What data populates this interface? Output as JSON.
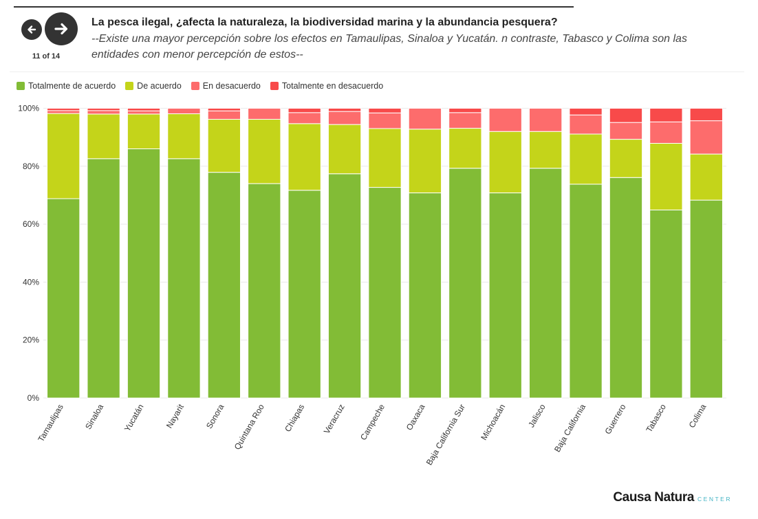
{
  "header": {
    "title": "La pesca ilegal, ¿afecta la naturaleza, la biodiversidad marina y la abundancia pesquera?",
    "subtitle": "--Existe una mayor percepción sobre los efectos en Tamaulipas, Sinaloa y Yucatán. n contraste, Tabasco y Colima son las entidades con menor percepción de estos--",
    "pager": "11 of 14"
  },
  "nav": {
    "prev_icon": "arrow-left-icon",
    "next_icon": "arrow-right-icon"
  },
  "footer": {
    "logo_main": "Causa Natura",
    "logo_sub": "CENTER"
  },
  "colors": {
    "series": [
      "#82bc36",
      "#c4d41a",
      "#fd6c6c",
      "#f84a4a"
    ],
    "grid": "#e9e9e9",
    "axis_text": "#333333"
  },
  "chart_data": {
    "type": "bar",
    "stacked": true,
    "title": "La pesca ilegal, ¿afecta la naturaleza, la biodiversidad marina y la abundancia pesquera?",
    "xlabel": "",
    "ylabel": "",
    "ylim": [
      0,
      100
    ],
    "yticks": [
      "0%",
      "20%",
      "40%",
      "60%",
      "80%",
      "100%"
    ],
    "legend_position": "top-left",
    "categories": [
      "Tamaulipas",
      "Sinaloa",
      "Yucatán",
      "Nayarit",
      "Sonora",
      "Quintana Roo",
      "Chiapas",
      "Veracruz",
      "Campeche",
      "Oaxaca",
      "Baja California Sur",
      "Michoacán",
      "Jalisco",
      "Baja California",
      "Guerrero",
      "Tabasco",
      "Colima"
    ],
    "series": [
      {
        "name": "Totalmente de acuerdo",
        "values": [
          68.8,
          82.6,
          86.0,
          82.6,
          77.9,
          74.0,
          71.7,
          77.4,
          72.7,
          70.8,
          79.3,
          70.8,
          79.3,
          73.8,
          76.1,
          64.9,
          68.3
        ]
      },
      {
        "name": "De acuerdo",
        "values": [
          29.4,
          15.4,
          12.0,
          15.5,
          18.3,
          22.2,
          23.0,
          17.0,
          20.3,
          22.0,
          13.8,
          21.2,
          12.7,
          17.3,
          13.2,
          23.0,
          15.9
        ]
      },
      {
        "name": "En desacuerdo",
        "values": [
          1.0,
          1.2,
          1.1,
          1.9,
          2.9,
          3.8,
          3.8,
          4.5,
          5.4,
          7.2,
          5.4,
          8.0,
          8.0,
          6.6,
          5.8,
          7.4,
          11.5
        ]
      },
      {
        "name": "Totalmente en desacuerdo",
        "values": [
          0.8,
          0.8,
          0.9,
          0.0,
          0.9,
          0.0,
          1.5,
          1.1,
          1.6,
          0.0,
          1.5,
          0.0,
          0.0,
          2.3,
          4.9,
          4.7,
          4.3
        ]
      }
    ]
  }
}
